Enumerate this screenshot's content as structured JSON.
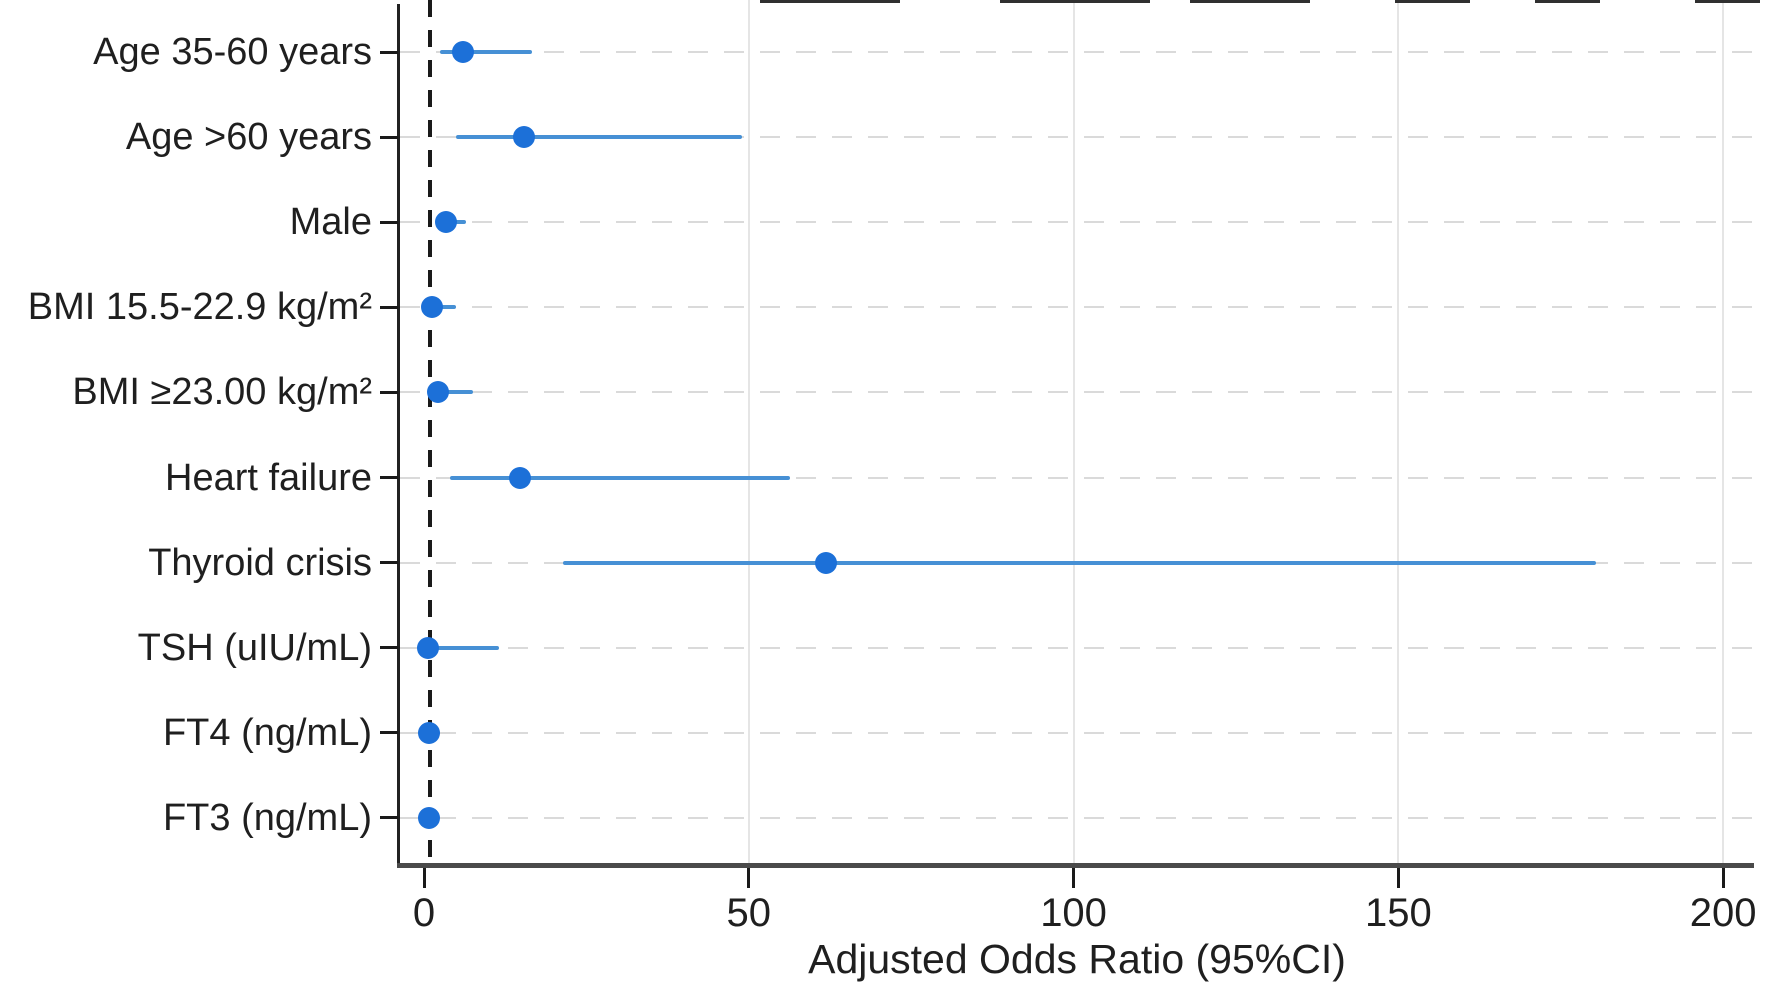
{
  "chart_data": {
    "type": "scatter",
    "subtype": "forest-plot",
    "title": "",
    "xlabel": "Adjusted Odds Ratio (95%CI)",
    "ylabel": "",
    "xlim": [
      0,
      200
    ],
    "x_ticks": [
      0,
      50,
      100,
      150,
      200
    ],
    "reference_line_x": 1,
    "grid": "light vertical lines at x-ticks; light dashed horizontal line per row",
    "legend_position": "none",
    "rows": [
      {
        "label": "Age 35-60 years",
        "or": 6.0,
        "ci_low": 2.4,
        "ci_high": 16.6
      },
      {
        "label": "Age >60 years",
        "or": 15.4,
        "ci_low": 4.9,
        "ci_high": 48.9
      },
      {
        "label": "Male",
        "or": 3.4,
        "ci_low": 1.8,
        "ci_high": 6.5
      },
      {
        "label": "BMI 15.5-22.9 kg/m²",
        "or": 1.3,
        "ci_low": 0.4,
        "ci_high": 5.0
      },
      {
        "label": "BMI ≥23.00 kg/m²",
        "or": 2.2,
        "ci_low": 0.8,
        "ci_high": 7.6
      },
      {
        "label": "Heart failure",
        "or": 14.8,
        "ci_low": 4.0,
        "ci_high": 56.4
      },
      {
        "label": "Thyroid crisis",
        "or": 61.9,
        "ci_low": 21.4,
        "ci_high": 180.5
      },
      {
        "label": "TSH (uIU/mL)",
        "or": 0.6,
        "ci_low": 0.1,
        "ci_high": 11.6
      },
      {
        "label": "FT4 (ng/mL)",
        "or": 0.7,
        "ci_low": 0.2,
        "ci_high": 2.4
      },
      {
        "label": "FT3 (ng/mL)",
        "or": 0.7,
        "ci_low": 0.2,
        "ci_high": 1.8
      }
    ],
    "colors": {
      "marker": "#1c70d8",
      "ci_line": "#4690d5",
      "reference_line": "#1a1a1a",
      "row_grid": "#dadada",
      "tick_grid": "#e5e5e5",
      "axis": "#4a4a4a",
      "text": "#1f1f1f"
    }
  }
}
